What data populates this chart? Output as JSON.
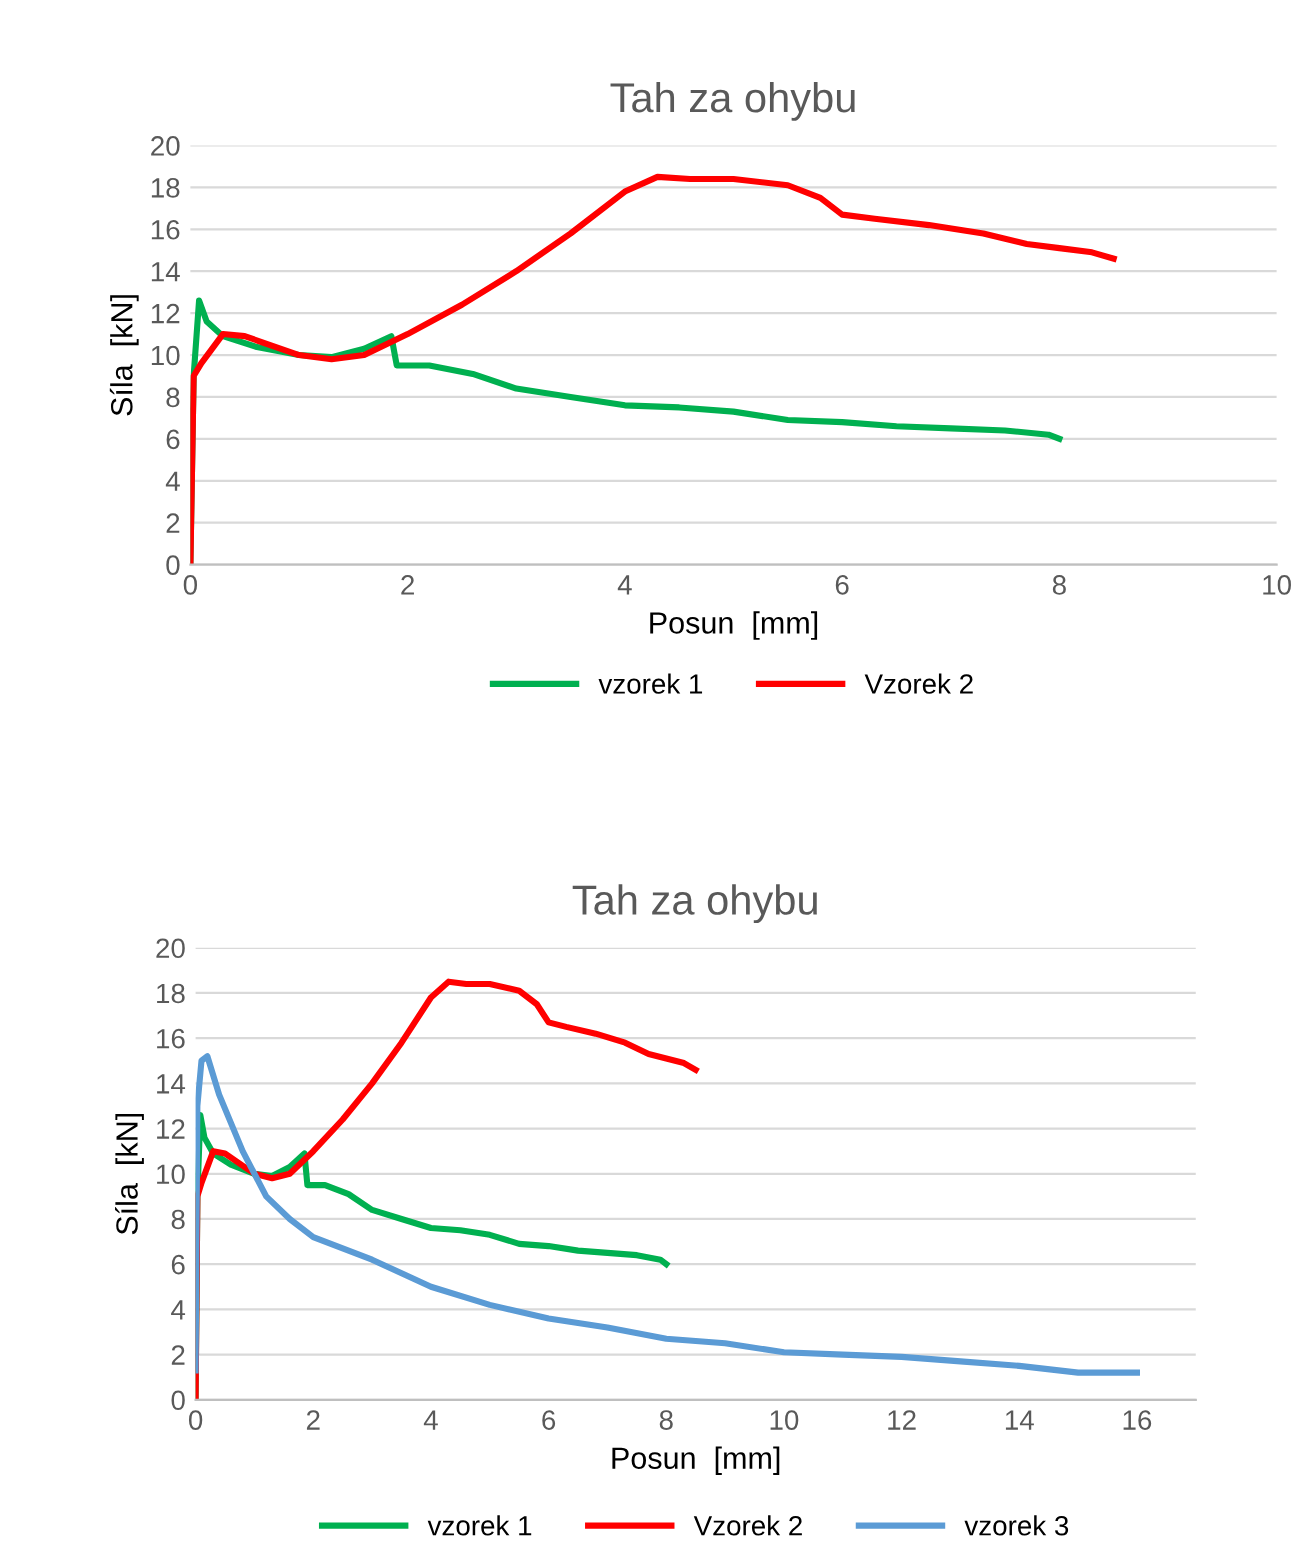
{
  "chart_data": [
    {
      "type": "line",
      "title": "Tah za ohybu",
      "xlabel": "Posun  [mm]",
      "ylabel": "Síla  [kN]",
      "xlim": [
        0,
        10
      ],
      "xticks": [
        0,
        2,
        4,
        6,
        8,
        10
      ],
      "ylim": [
        0,
        20
      ],
      "yticks": [
        0,
        2,
        4,
        6,
        8,
        10,
        12,
        14,
        16,
        18,
        20
      ],
      "grid": "y",
      "legend": "bottom",
      "marker": "none",
      "series": [
        {
          "name": "vzorek 1",
          "color": "#00b050",
          "x": [
            0,
            0.03,
            0.08,
            0.15,
            0.3,
            0.6,
            1,
            1.3,
            1.6,
            1.85,
            1.9,
            2.2,
            2.6,
            3,
            3.5,
            4,
            4.5,
            5,
            5.5,
            6,
            6.5,
            7,
            7.5,
            7.9,
            8
          ],
          "values": [
            0,
            9,
            12.6,
            11.6,
            10.9,
            10.4,
            10,
            9.9,
            10.3,
            10.9,
            9.5,
            9.5,
            9.1,
            8.4,
            8,
            7.6,
            7.5,
            7.3,
            6.9,
            6.8,
            6.6,
            6.5,
            6.4,
            6.2,
            6.0
          ]
        },
        {
          "name": "Vzorek 2",
          "color": "#ff0000",
          "x": [
            0,
            0.03,
            0.1,
            0.3,
            0.5,
            1,
            1.3,
            1.6,
            2,
            2.5,
            3,
            3.5,
            4,
            4.3,
            4.6,
            5,
            5.5,
            5.8,
            6,
            6.3,
            6.8,
            7.3,
            7.7,
            8,
            8.3,
            8.5
          ],
          "values": [
            0,
            9,
            9.6,
            11,
            10.9,
            10,
            9.8,
            10,
            11,
            12.4,
            14,
            15.8,
            17.8,
            18.5,
            18.4,
            18.4,
            18.1,
            17.5,
            16.7,
            16.5,
            16.2,
            15.8,
            15.3,
            15.1,
            14.9,
            14.6
          ]
        }
      ]
    },
    {
      "type": "line",
      "title": "Tah za ohybu",
      "xlabel": "Posun  [mm]",
      "ylabel": "Síla  [kN]",
      "xlim": [
        0,
        17
      ],
      "xticks": [
        0,
        2,
        4,
        6,
        8,
        10,
        12,
        14,
        16
      ],
      "ylim": [
        0,
        20
      ],
      "yticks": [
        0,
        2,
        4,
        6,
        8,
        10,
        12,
        14,
        16,
        18,
        20
      ],
      "grid": "y",
      "legend": "bottom",
      "marker": "none",
      "series": [
        {
          "name": "vzorek 1",
          "color": "#00b050",
          "x": [
            0,
            0.03,
            0.08,
            0.15,
            0.3,
            0.6,
            1,
            1.3,
            1.6,
            1.85,
            1.9,
            2.2,
            2.6,
            3,
            3.5,
            4,
            4.5,
            5,
            5.5,
            6,
            6.5,
            7,
            7.5,
            7.9,
            8
          ],
          "values": [
            0,
            9,
            12.6,
            11.6,
            10.9,
            10.4,
            10,
            9.9,
            10.3,
            10.9,
            9.5,
            9.5,
            9.1,
            8.4,
            8,
            7.6,
            7.5,
            7.3,
            6.9,
            6.8,
            6.6,
            6.5,
            6.4,
            6.2,
            6.0
          ]
        },
        {
          "name": "Vzorek 2",
          "color": "#ff0000",
          "x": [
            0,
            0.03,
            0.1,
            0.3,
            0.5,
            1,
            1.3,
            1.6,
            2,
            2.5,
            3,
            3.5,
            4,
            4.3,
            4.6,
            5,
            5.5,
            5.8,
            6,
            6.3,
            6.8,
            7.3,
            7.7,
            8,
            8.3,
            8.5
          ],
          "values": [
            0,
            9,
            9.6,
            11,
            10.9,
            10,
            9.8,
            10,
            11,
            12.4,
            14,
            15.8,
            17.8,
            18.5,
            18.4,
            18.4,
            18.1,
            17.5,
            16.7,
            16.5,
            16.2,
            15.8,
            15.3,
            15.1,
            14.9,
            14.6
          ]
        },
        {
          "name": "vzorek 3",
          "color": "#5b9bd5",
          "x": [
            0,
            0.03,
            0.1,
            0.2,
            0.4,
            0.8,
            1.2,
            1.6,
            2,
            3,
            4,
            5,
            6,
            7,
            8,
            9,
            10,
            11,
            12,
            13,
            14,
            15,
            16
          ],
          "values": [
            1.3,
            13,
            15,
            15.2,
            13.5,
            11,
            9,
            8,
            7.2,
            6.2,
            5,
            4.2,
            3.6,
            3.2,
            2.7,
            2.5,
            2.1,
            2,
            1.9,
            1.7,
            1.5,
            1.2,
            1.2
          ]
        }
      ]
    }
  ]
}
